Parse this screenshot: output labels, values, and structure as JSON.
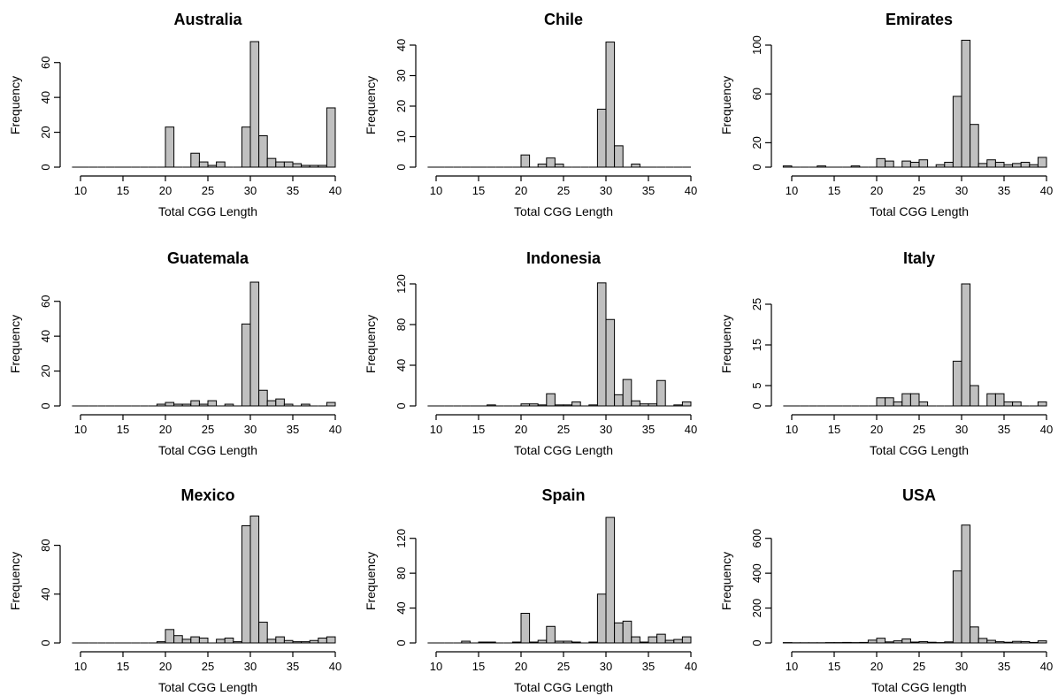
{
  "chart_data": [
    {
      "type": "bar",
      "title": "Australia",
      "xlabel": "Total CGG Length",
      "ylabel": "Frequency",
      "xlim": [
        10,
        40
      ],
      "ylim": [
        0,
        70
      ],
      "yticks": [
        0,
        20,
        40,
        60
      ],
      "xticks": [
        10,
        15,
        20,
        25,
        30,
        35,
        40
      ],
      "bin_starts": [
        9,
        10,
        11,
        12,
        13,
        14,
        15,
        16,
        17,
        18,
        19,
        20,
        21,
        22,
        23,
        24,
        25,
        26,
        27,
        28,
        29,
        30,
        31,
        32,
        33,
        34,
        35,
        36,
        37,
        38,
        39
      ],
      "values": [
        0,
        0,
        0,
        0,
        0,
        0,
        0,
        0,
        0,
        0,
        0,
        23,
        0,
        0,
        8,
        3,
        1,
        3,
        0,
        0,
        23,
        72,
        18,
        5,
        3,
        3,
        2,
        1,
        1,
        1,
        34
      ]
    },
    {
      "type": "bar",
      "title": "Chile",
      "xlabel": "Total CGG Length",
      "ylabel": "Frequency",
      "xlim": [
        10,
        40
      ],
      "ylim": [
        0,
        40
      ],
      "yticks": [
        0,
        10,
        20,
        30,
        40
      ],
      "xticks": [
        10,
        15,
        20,
        25,
        30,
        35,
        40
      ],
      "bin_starts": [
        9,
        10,
        11,
        12,
        13,
        14,
        15,
        16,
        17,
        18,
        19,
        20,
        21,
        22,
        23,
        24,
        25,
        26,
        27,
        28,
        29,
        30,
        31,
        32,
        33,
        34,
        35,
        36,
        37,
        38,
        39
      ],
      "values": [
        0,
        0,
        0,
        0,
        0,
        0,
        0,
        0,
        0,
        0,
        0,
        4,
        0,
        1,
        3,
        1,
        0,
        0,
        0,
        0,
        19,
        41,
        7,
        0,
        1,
        0,
        0,
        0,
        0,
        0,
        0
      ]
    },
    {
      "type": "bar",
      "title": "Emirates",
      "xlabel": "Total CGG Length",
      "ylabel": "Frequency",
      "xlim": [
        10,
        40
      ],
      "ylim": [
        0,
        100
      ],
      "yticks": [
        0,
        20,
        60,
        100
      ],
      "xticks": [
        10,
        15,
        20,
        25,
        30,
        35,
        40
      ],
      "bin_starts": [
        9,
        10,
        11,
        12,
        13,
        14,
        15,
        16,
        17,
        18,
        19,
        20,
        21,
        22,
        23,
        24,
        25,
        26,
        27,
        28,
        29,
        30,
        31,
        32,
        33,
        34,
        35,
        36,
        37,
        38,
        39
      ],
      "values": [
        1,
        0,
        0,
        0,
        1,
        0,
        0,
        0,
        1,
        0,
        0,
        7,
        5,
        0,
        5,
        4,
        6,
        0,
        2,
        4,
        58,
        104,
        35,
        3,
        6,
        4,
        2,
        3,
        4,
        2,
        8
      ]
    },
    {
      "type": "bar",
      "title": "Guatemala",
      "xlabel": "Total CGG Length",
      "ylabel": "Frequency",
      "xlim": [
        10,
        40
      ],
      "ylim": [
        0,
        70
      ],
      "yticks": [
        0,
        20,
        40,
        60
      ],
      "xticks": [
        10,
        15,
        20,
        25,
        30,
        35,
        40
      ],
      "bin_starts": [
        9,
        10,
        11,
        12,
        13,
        14,
        15,
        16,
        17,
        18,
        19,
        20,
        21,
        22,
        23,
        24,
        25,
        26,
        27,
        28,
        29,
        30,
        31,
        32,
        33,
        34,
        35,
        36,
        37,
        38,
        39
      ],
      "values": [
        0,
        0,
        0,
        0,
        0,
        0,
        0,
        0,
        0,
        0,
        1,
        2,
        1,
        1,
        3,
        1,
        3,
        0,
        1,
        0,
        47,
        71,
        9,
        3,
        4,
        1,
        0,
        1,
        0,
        0,
        2
      ]
    },
    {
      "type": "bar",
      "title": "Indonesia",
      "xlabel": "Total CGG Length",
      "ylabel": "Frequency",
      "xlim": [
        10,
        40
      ],
      "ylim": [
        0,
        120
      ],
      "yticks": [
        0,
        40,
        80,
        120
      ],
      "xticks": [
        10,
        15,
        20,
        25,
        30,
        35,
        40
      ],
      "bin_starts": [
        9,
        10,
        11,
        12,
        13,
        14,
        15,
        16,
        17,
        18,
        19,
        20,
        21,
        22,
        23,
        24,
        25,
        26,
        27,
        28,
        29,
        30,
        31,
        32,
        33,
        34,
        35,
        36,
        37,
        38,
        39
      ],
      "values": [
        0,
        0,
        0,
        0,
        0,
        0,
        0,
        1,
        0,
        0,
        0,
        2,
        2,
        1,
        12,
        1,
        1,
        4,
        0,
        1,
        121,
        85,
        11,
        26,
        5,
        2,
        2,
        25,
        0,
        1,
        4
      ]
    },
    {
      "type": "bar",
      "title": "Italy",
      "xlabel": "Total CGG Length",
      "ylabel": "Frequency",
      "xlim": [
        10,
        40
      ],
      "ylim": [
        0,
        30
      ],
      "yticks": [
        0,
        5,
        15,
        25
      ],
      "xticks": [
        10,
        15,
        20,
        25,
        30,
        35,
        40
      ],
      "bin_starts": [
        9,
        10,
        11,
        12,
        13,
        14,
        15,
        16,
        17,
        18,
        19,
        20,
        21,
        22,
        23,
        24,
        25,
        26,
        27,
        28,
        29,
        30,
        31,
        32,
        33,
        34,
        35,
        36,
        37,
        38,
        39
      ],
      "values": [
        0,
        0,
        0,
        0,
        0,
        0,
        0,
        0,
        0,
        0,
        0,
        2,
        2,
        1,
        3,
        3,
        1,
        0,
        0,
        0,
        11,
        30,
        5,
        0,
        3,
        3,
        1,
        1,
        0,
        0,
        1
      ]
    },
    {
      "type": "bar",
      "title": "Mexico",
      "xlabel": "Total CGG Length",
      "ylabel": "Frequency",
      "xlim": [
        10,
        40
      ],
      "ylim": [
        0,
        100
      ],
      "yticks": [
        0,
        40,
        80
      ],
      "xticks": [
        10,
        15,
        20,
        25,
        30,
        35,
        40
      ],
      "bin_starts": [
        9,
        10,
        11,
        12,
        13,
        14,
        15,
        16,
        17,
        18,
        19,
        20,
        21,
        22,
        23,
        24,
        25,
        26,
        27,
        28,
        29,
        30,
        31,
        32,
        33,
        34,
        35,
        36,
        37,
        38,
        39
      ],
      "values": [
        0,
        0,
        0,
        0,
        0,
        0,
        0,
        0,
        0,
        0,
        1,
        11,
        6,
        3,
        5,
        4,
        0,
        3,
        4,
        1,
        96,
        104,
        17,
        3,
        5,
        2,
        1,
        1,
        2,
        4,
        5
      ]
    },
    {
      "type": "bar",
      "title": "Spain",
      "xlabel": "Total CGG Length",
      "ylabel": "Frequency",
      "xlim": [
        10,
        40
      ],
      "ylim": [
        0,
        140
      ],
      "yticks": [
        0,
        40,
        80,
        120
      ],
      "xticks": [
        10,
        15,
        20,
        25,
        30,
        35,
        40
      ],
      "bin_starts": [
        9,
        10,
        11,
        12,
        13,
        14,
        15,
        16,
        17,
        18,
        19,
        20,
        21,
        22,
        23,
        24,
        25,
        26,
        27,
        28,
        29,
        30,
        31,
        32,
        33,
        34,
        35,
        36,
        37,
        38,
        39
      ],
      "values": [
        0,
        0,
        0,
        0,
        2,
        0,
        1,
        1,
        0,
        0,
        1,
        34,
        1,
        3,
        19,
        2,
        2,
        1,
        0,
        1,
        56,
        144,
        23,
        25,
        7,
        1,
        7,
        10,
        3,
        4,
        7
      ]
    },
    {
      "type": "bar",
      "title": "USA",
      "xlabel": "Total CGG length",
      "ylabel": "Frequency",
      "xlim": [
        10,
        40
      ],
      "ylim": [
        0,
        700
      ],
      "yticks": [
        0,
        200,
        400,
        600
      ],
      "xticks": [
        10,
        15,
        20,
        25,
        30,
        35,
        40
      ],
      "bin_starts": [
        9,
        10,
        11,
        12,
        13,
        14,
        15,
        16,
        17,
        18,
        19,
        20,
        21,
        22,
        23,
        24,
        25,
        26,
        27,
        28,
        29,
        30,
        31,
        32,
        33,
        34,
        35,
        36,
        37,
        38,
        39
      ],
      "values": [
        2,
        1,
        1,
        1,
        1,
        2,
        2,
        3,
        2,
        3,
        16,
        27,
        6,
        12,
        23,
        5,
        8,
        4,
        2,
        6,
        413,
        676,
        92,
        26,
        15,
        7,
        4,
        9,
        8,
        3,
        12
      ]
    }
  ]
}
